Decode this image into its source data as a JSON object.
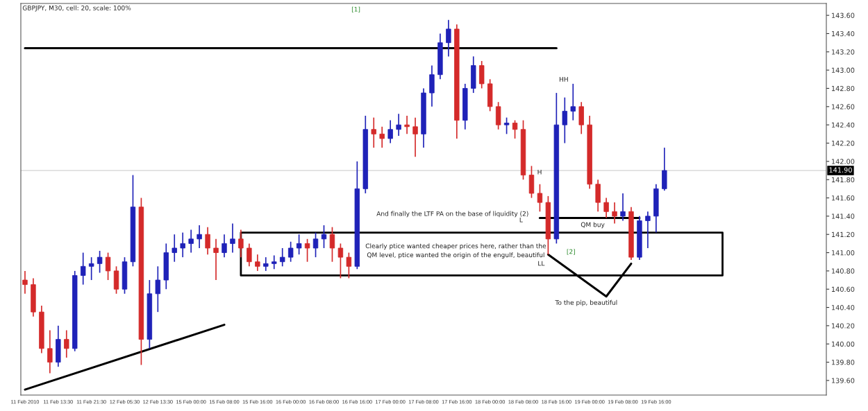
{
  "chart_data": {
    "type": "candlestick",
    "title": "GBPJPY, M30, cell: 20, scale: 100%",
    "categories": [
      "11 Feb 2010",
      null,
      null,
      null,
      "11 Feb 13:30",
      null,
      null,
      null,
      "11 Feb 21:30",
      null,
      null,
      null,
      "12 Feb 05:30",
      null,
      null,
      null,
      "12 Feb 13:30",
      null,
      null,
      null,
      "15 Feb 00:00",
      null,
      null,
      null,
      "15 Feb 08:00",
      null,
      null,
      null,
      "15 Feb 16:00",
      null,
      null,
      null,
      "16 Feb 00:00",
      null,
      null,
      null,
      "16 Feb 08:00",
      null,
      null,
      null,
      "16 Feb 16:00",
      null,
      null,
      null,
      "17 Feb 00:00",
      null,
      null,
      null,
      "17 Feb 08:00",
      null,
      null,
      null,
      "17 Feb 16:00",
      null,
      null,
      null,
      "18 Feb 00:00",
      null,
      null,
      null,
      "18 Feb 08:00",
      null,
      null,
      null,
      "18 Feb 16:00",
      null,
      null,
      null,
      "19 Feb 00:00",
      null,
      null,
      null,
      "19 Feb 08:00",
      null,
      null,
      null,
      "19 Feb 16:00",
      null,
      null,
      null,
      null,
      null,
      null,
      null,
      null,
      null,
      null,
      null,
      null,
      null,
      null,
      null,
      null,
      null,
      null,
      null,
      null
    ],
    "ohlc": [
      [
        140.7,
        140.8,
        140.55,
        140.65
      ],
      [
        140.65,
        140.72,
        140.3,
        140.35
      ],
      [
        140.35,
        140.42,
        139.9,
        139.95
      ],
      [
        139.95,
        140.15,
        139.68,
        139.8
      ],
      [
        139.8,
        140.2,
        139.75,
        140.05
      ],
      [
        140.05,
        140.15,
        139.85,
        139.95
      ],
      [
        139.95,
        140.8,
        139.92,
        140.75
      ],
      [
        140.75,
        141.0,
        140.65,
        140.85
      ],
      [
        140.85,
        140.95,
        140.7,
        140.88
      ],
      [
        140.88,
        141.02,
        140.78,
        140.95
      ],
      [
        140.95,
        141.0,
        140.7,
        140.8
      ],
      [
        140.8,
        140.85,
        140.55,
        140.6
      ],
      [
        140.6,
        140.95,
        140.55,
        140.9
      ],
      [
        140.9,
        141.85,
        140.85,
        141.5
      ],
      [
        141.5,
        141.6,
        139.77,
        140.05
      ],
      [
        140.05,
        140.7,
        139.95,
        140.55
      ],
      [
        140.55,
        140.85,
        140.35,
        140.7
      ],
      [
        140.7,
        141.1,
        140.6,
        141.0
      ],
      [
        141.0,
        141.2,
        140.9,
        141.05
      ],
      [
        141.05,
        141.22,
        140.95,
        141.1
      ],
      [
        141.1,
        141.25,
        141.0,
        141.15
      ],
      [
        141.15,
        141.3,
        141.05,
        141.2
      ],
      [
        141.2,
        141.28,
        140.98,
        141.05
      ],
      [
        141.05,
        141.15,
        140.7,
        141.0
      ],
      [
        141.0,
        141.2,
        140.95,
        141.1
      ],
      [
        141.1,
        141.32,
        141.0,
        141.15
      ],
      [
        141.15,
        141.25,
        140.95,
        141.05
      ],
      [
        141.05,
        141.1,
        140.85,
        140.9
      ],
      [
        140.9,
        140.98,
        140.8,
        140.85
      ],
      [
        140.85,
        140.95,
        140.8,
        140.88
      ],
      [
        140.88,
        140.97,
        140.82,
        140.9
      ],
      [
        140.9,
        141.05,
        140.85,
        140.95
      ],
      [
        140.95,
        141.12,
        140.9,
        141.05
      ],
      [
        141.05,
        141.2,
        140.98,
        141.1
      ],
      [
        141.1,
        141.15,
        140.9,
        141.05
      ],
      [
        141.05,
        141.22,
        140.95,
        141.15
      ],
      [
        141.15,
        141.3,
        141.05,
        141.2
      ],
      [
        141.2,
        141.28,
        140.9,
        141.05
      ],
      [
        141.05,
        141.1,
        140.72,
        140.95
      ],
      [
        140.95,
        141.0,
        140.72,
        140.85
      ],
      [
        140.85,
        142.0,
        140.82,
        141.7
      ],
      [
        141.7,
        142.5,
        141.65,
        142.35
      ],
      [
        142.35,
        142.48,
        142.15,
        142.3
      ],
      [
        142.3,
        142.38,
        142.15,
        142.25
      ],
      [
        142.25,
        142.45,
        142.2,
        142.35
      ],
      [
        142.35,
        142.52,
        142.28,
        142.4
      ],
      [
        142.4,
        142.5,
        142.3,
        142.38
      ],
      [
        142.38,
        142.48,
        142.05,
        142.3
      ],
      [
        142.3,
        142.8,
        142.15,
        142.75
      ],
      [
        142.75,
        143.05,
        142.6,
        142.95
      ],
      [
        142.95,
        143.4,
        142.9,
        143.3
      ],
      [
        143.3,
        143.55,
        143.15,
        143.45
      ],
      [
        143.45,
        143.5,
        142.25,
        142.45
      ],
      [
        142.45,
        142.85,
        142.35,
        142.8
      ],
      [
        142.8,
        143.15,
        142.75,
        143.05
      ],
      [
        143.05,
        143.1,
        142.8,
        142.85
      ],
      [
        142.85,
        142.9,
        142.55,
        142.6
      ],
      [
        142.6,
        142.65,
        142.35,
        142.4
      ],
      [
        142.4,
        142.48,
        142.3,
        142.42
      ],
      [
        142.42,
        142.45,
        142.25,
        142.35
      ],
      [
        142.35,
        142.45,
        141.8,
        141.85
      ],
      [
        141.85,
        141.95,
        141.6,
        141.65
      ],
      [
        141.65,
        141.75,
        141.45,
        141.55
      ],
      [
        141.55,
        141.62,
        140.98,
        141.15
      ],
      [
        141.15,
        142.75,
        141.1,
        142.4
      ],
      [
        142.4,
        142.7,
        142.2,
        142.55
      ],
      [
        142.55,
        142.85,
        142.45,
        142.6
      ],
      [
        142.6,
        142.65,
        142.3,
        142.4
      ],
      [
        142.4,
        142.5,
        141.7,
        141.75
      ],
      [
        141.75,
        141.8,
        141.45,
        141.55
      ],
      [
        141.55,
        141.6,
        141.38,
        141.45
      ],
      [
        141.45,
        141.55,
        141.32,
        141.4
      ],
      [
        141.4,
        141.65,
        141.35,
        141.45
      ],
      [
        141.45,
        141.5,
        140.92,
        140.95
      ],
      [
        140.95,
        141.4,
        140.92,
        141.35
      ],
      [
        141.35,
        141.45,
        141.05,
        141.4
      ],
      [
        141.4,
        141.75,
        141.22,
        141.7
      ],
      [
        141.7,
        142.15,
        141.68,
        141.9
      ],
      null,
      null,
      null,
      null,
      null,
      null,
      null,
      null,
      null,
      null,
      null,
      null,
      null,
      null,
      null,
      null,
      null,
      null,
      null
    ],
    "colors": [
      "#d42a2a",
      "#d42a2a",
      "#d42a2a",
      "#d42a2a",
      "#1f22b8",
      "#d42a2a",
      "#1f22b8",
      "#1f22b8",
      "#1f22b8",
      "#1f22b8",
      "#d42a2a",
      "#d42a2a",
      "#1f22b8",
      "#1f22b8",
      "#d42a2a",
      "#1f22b8",
      "#1f22b8",
      "#1f22b8",
      "#1f22b8",
      "#1f22b8",
      "#1f22b8",
      "#1f22b8",
      "#d42a2a",
      "#d42a2a",
      "#1f22b8",
      "#1f22b8",
      "#d42a2a",
      "#d42a2a",
      "#d42a2a",
      "#1f22b8",
      "#1f22b8",
      "#1f22b8",
      "#1f22b8",
      "#1f22b8",
      "#d42a2a",
      "#1f22b8",
      "#1f22b8",
      "#d42a2a",
      "#d42a2a",
      "#d42a2a",
      "#1f22b8",
      "#1f22b8",
      "#d42a2a",
      "#d42a2a",
      "#1f22b8",
      "#1f22b8",
      "#d42a2a",
      "#d42a2a",
      "#1f22b8",
      "#1f22b8",
      "#1f22b8",
      "#1f22b8",
      "#d42a2a",
      "#1f22b8",
      "#1f22b8",
      "#d42a2a",
      "#d42a2a",
      "#d42a2a",
      "#1f22b8",
      "#d42a2a",
      "#d42a2a",
      "#d42a2a",
      "#d42a2a",
      "#d42a2a",
      "#1f22b8",
      "#1f22b8",
      "#1f22b8",
      "#d42a2a",
      "#d42a2a",
      "#d42a2a",
      "#d42a2a",
      "#d42a2a",
      "#1f22b8",
      "#d42a2a",
      "#1f22b8",
      "#1f22b8",
      "#1f22b8",
      "#1f22b8",
      null,
      null,
      null,
      null,
      null,
      null,
      null,
      null,
      null,
      null,
      null,
      null,
      null,
      null,
      null,
      null,
      null,
      null,
      null
    ],
    "series": [
      {
        "type": "line",
        "color": "#000000",
        "values": [
          139.5,
          null,
          null,
          null,
          null,
          null,
          null,
          null,
          null,
          null,
          null,
          null,
          null,
          null,
          null,
          null,
          null,
          null,
          null,
          null,
          null,
          null,
          null,
          null,
          140.21,
          null,
          null,
          null,
          null,
          null,
          null,
          null,
          null,
          null,
          null,
          null,
          null,
          null,
          null,
          null,
          null,
          null,
          null,
          null,
          null,
          null,
          null,
          null,
          null,
          null,
          null,
          null,
          null,
          null,
          null,
          null,
          null,
          null,
          null,
          null,
          null,
          null,
          null,
          null,
          null,
          null,
          null,
          null,
          null,
          null,
          null,
          null,
          null,
          null,
          null,
          null,
          null,
          null,
          null,
          null,
          null,
          null,
          null,
          null,
          null,
          null,
          null,
          null,
          null,
          null,
          null,
          null,
          null,
          null,
          null,
          null,
          null
        ]
      },
      {
        "type": "line",
        "color": "#000000",
        "values": [
          143.24,
          null,
          null,
          null,
          null,
          null,
          null,
          null,
          null,
          null,
          null,
          null,
          null,
          null,
          null,
          null,
          null,
          null,
          null,
          null,
          null,
          null,
          null,
          null,
          null,
          null,
          null,
          null,
          null,
          null,
          null,
          null,
          null,
          null,
          null,
          null,
          null,
          null,
          null,
          null,
          null,
          null,
          null,
          null,
          null,
          null,
          null,
          null,
          null,
          null,
          null,
          null,
          null,
          null,
          null,
          null,
          null,
          null,
          null,
          null,
          null,
          null,
          null,
          null,
          143.24,
          null,
          null,
          null,
          null,
          null,
          null,
          null,
          null,
          null,
          null,
          null,
          null,
          null,
          null,
          null,
          null,
          null,
          null,
          null,
          null,
          null,
          null,
          null,
          null,
          null,
          null,
          null,
          null,
          null,
          null,
          null,
          null
        ]
      },
      {
        "type": "line",
        "color": "#000000",
        "values": [
          null,
          null,
          null,
          null,
          null,
          null,
          null,
          null,
          null,
          null,
          null,
          null,
          null,
          null,
          null,
          null,
          null,
          null,
          null,
          null,
          null,
          null,
          null,
          null,
          null,
          null,
          null,
          null,
          null,
          null,
          null,
          null,
          null,
          null,
          null,
          null,
          null,
          null,
          null,
          null,
          null,
          null,
          null,
          null,
          null,
          null,
          null,
          null,
          null,
          null,
          null,
          null,
          null,
          null,
          null,
          null,
          null,
          null,
          null,
          null,
          null,
          null,
          141.38,
          null,
          null,
          null,
          null,
          null,
          null,
          null,
          null,
          null,
          null,
          null,
          141.38,
          null,
          null,
          null,
          null,
          null,
          null,
          null,
          null,
          null,
          null,
          null,
          null,
          null,
          null,
          null,
          null,
          null,
          null,
          null,
          null,
          null,
          null
        ]
      },
      {
        "type": "line",
        "color": "#000000",
        "values": [
          null,
          null,
          null,
          null,
          null,
          null,
          null,
          null,
          null,
          null,
          null,
          null,
          null,
          null,
          null,
          null,
          null,
          null,
          null,
          null,
          null,
          null,
          null,
          null,
          null,
          null,
          null,
          null,
          null,
          null,
          null,
          null,
          null,
          null,
          null,
          null,
          null,
          null,
          null,
          null,
          null,
          null,
          null,
          null,
          null,
          null,
          null,
          null,
          null,
          null,
          null,
          null,
          null,
          null,
          null,
          null,
          null,
          null,
          null,
          null,
          null,
          null,
          null,
          140.98,
          null,
          null,
          null,
          null,
          null,
          null,
          140.52,
          null,
          null,
          140.88,
          null,
          null,
          null,
          null,
          null,
          null,
          null,
          null,
          null,
          null,
          null,
          null,
          null,
          null,
          null,
          null,
          null,
          null,
          null,
          null,
          null,
          null,
          null
        ]
      },
      {
        "type": "line",
        "color": "#000000",
        "values": [
          null,
          null,
          null,
          null,
          null,
          null,
          null,
          null,
          null,
          null,
          null,
          null,
          null,
          null,
          null,
          null,
          null,
          null,
          null,
          null,
          null,
          null,
          null,
          null,
          null,
          null,
          null,
          null,
          null,
          null,
          null,
          null,
          null,
          null,
          null,
          null,
          null,
          null,
          null,
          null,
          null,
          null,
          null,
          null,
          null,
          null,
          null,
          null,
          null,
          null,
          null,
          null,
          null,
          null,
          null,
          null,
          null,
          null,
          null,
          null,
          null,
          null,
          null,
          null,
          null,
          null,
          null,
          null,
          null,
          null,
          null,
          null,
          null,
          null,
          null,
          null,
          null,
          null,
          null,
          null,
          null,
          null,
          null,
          null,
          null,
          null,
          null,
          null,
          null,
          null,
          null,
          null,
          null,
          null,
          null,
          null,
          null
        ],
        "lower": [
          null,
          null,
          null,
          null,
          null,
          null,
          null,
          null,
          null,
          null,
          null,
          null,
          null,
          null,
          null,
          null,
          null,
          null,
          null,
          null,
          null,
          null,
          null,
          null,
          null,
          null,
          140.75,
          null,
          null,
          null,
          null,
          null,
          null,
          null,
          null,
          null,
          null,
          null,
          null,
          null,
          null,
          null,
          null,
          null,
          null,
          null,
          null,
          null,
          null,
          null,
          null,
          null,
          null,
          null,
          null,
          null,
          null,
          null,
          null,
          null,
          null,
          null,
          null,
          null,
          null,
          null,
          null,
          null,
          null,
          null,
          null,
          null,
          null,
          null,
          null,
          null,
          null,
          null,
          null,
          null,
          null,
          null,
          null,
          null,
          140.75,
          null,
          null,
          null,
          null,
          null,
          null,
          null,
          null,
          null,
          null,
          null,
          null
        ],
        "upper": [
          null,
          null,
          null,
          null,
          null,
          null,
          null,
          null,
          null,
          null,
          null,
          null,
          null,
          null,
          null,
          null,
          null,
          null,
          null,
          null,
          null,
          null,
          null,
          null,
          null,
          null,
          141.22,
          null,
          null,
          null,
          null,
          null,
          null,
          null,
          null,
          null,
          null,
          null,
          null,
          null,
          null,
          null,
          null,
          null,
          null,
          null,
          null,
          null,
          null,
          null,
          null,
          null,
          null,
          null,
          null,
          null,
          null,
          null,
          null,
          null,
          null,
          null,
          null,
          null,
          null,
          null,
          null,
          null,
          null,
          null,
          null,
          null,
          null,
          null,
          null,
          null,
          null,
          null,
          null,
          null,
          null,
          null,
          null,
          null,
          141.22,
          null,
          null,
          null,
          null,
          null,
          null,
          null,
          null,
          null,
          null,
          null,
          null
        ]
      }
    ],
    "ref_lines": [
      {
        "axis": "y",
        "value": 141.9,
        "label": "141.90",
        "color": "#c8c8c8"
      }
    ],
    "annotations": [
      "[1]",
      "HH",
      "H",
      "L",
      "LL",
      "QM buy",
      "[2]",
      "And finally the LTF PA on the base of liquidity (2)",
      "Clearly ptice wanted cheaper prices here, rather than the\nQM level, ptice wanted the origin of the engulf, beautiful",
      "To the pip, beautiful"
    ],
    "ylim": [
      139.44,
      143.73
    ],
    "yticks": [
      {
        "value": 139.6,
        "label": "139.60"
      },
      {
        "value": 139.8,
        "label": "139.80"
      },
      {
        "value": 140.0,
        "label": "140.00"
      },
      {
        "value": 140.2,
        "label": "140.20"
      },
      {
        "value": 140.4,
        "label": "140.40"
      },
      {
        "value": 140.6,
        "label": "140.60"
      },
      {
        "value": 140.8,
        "label": "140.80"
      },
      {
        "value": 141.0,
        "label": "141.00"
      },
      {
        "value": 141.2,
        "label": "141.20"
      },
      {
        "value": 141.4,
        "label": "141.40"
      },
      {
        "value": 141.6,
        "label": "141.60"
      },
      {
        "value": 141.8,
        "label": "141.80"
      },
      {
        "value": 142.0,
        "label": "142.00"
      },
      {
        "value": 142.2,
        "label": "142.20"
      },
      {
        "value": 142.4,
        "label": "142.40"
      },
      {
        "value": 142.6,
        "label": "142.60"
      },
      {
        "value": 142.8,
        "label": "142.80"
      },
      {
        "value": 143.0,
        "label": "143.00"
      },
      {
        "value": 143.2,
        "label": "143.20"
      },
      {
        "value": 143.4,
        "label": "143.40"
      },
      {
        "value": 143.6,
        "label": "143.60"
      }
    ]
  }
}
